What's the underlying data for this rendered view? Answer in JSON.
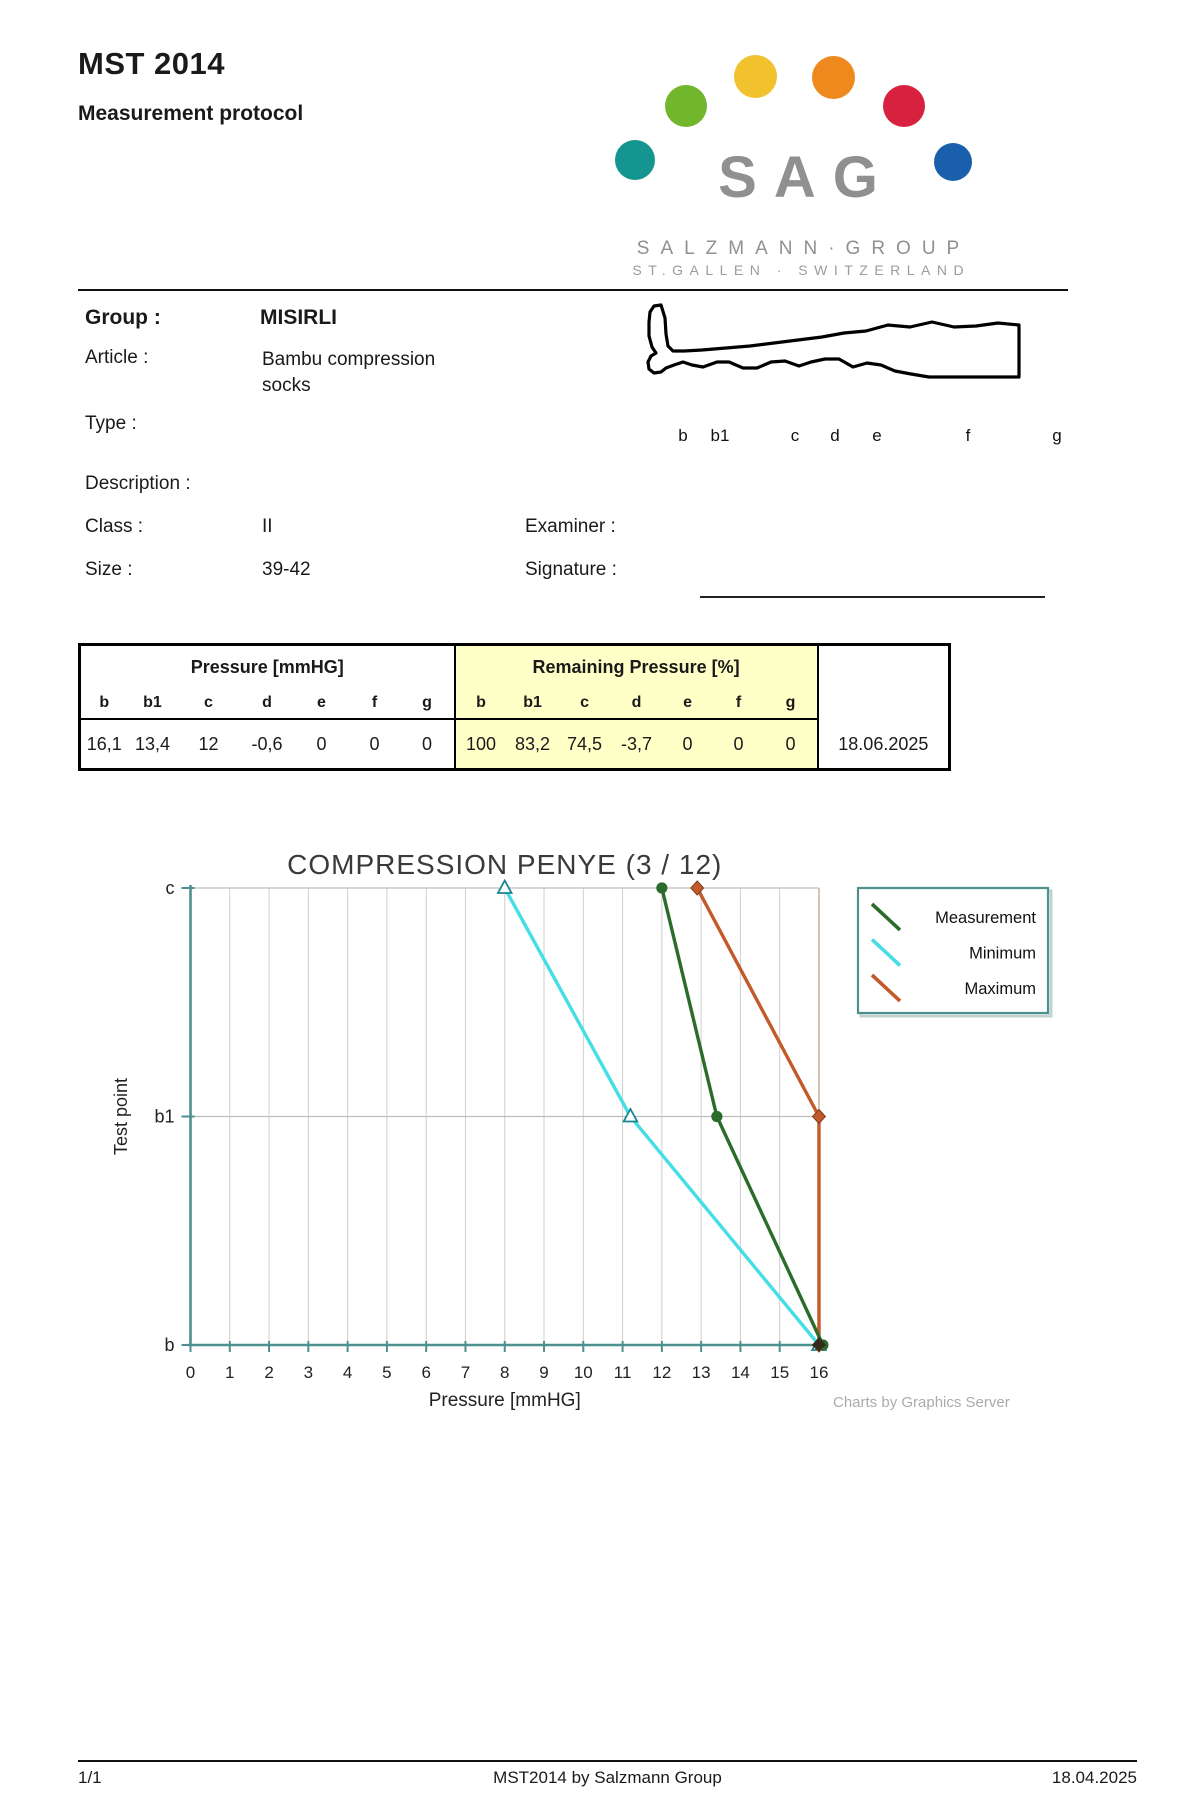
{
  "header": {
    "title": "MST 2014",
    "subtitle": "Measurement protocol"
  },
  "logo": {
    "acronym": "SAG",
    "group_line": "SALZMANN·GROUP",
    "location_line": "ST.GALLEN · SWITZERLAND",
    "dot_colors": [
      "#14958F",
      "#71B62C",
      "#F2C12E",
      "#EE8A1D",
      "#D8203F",
      "#1A5FAC"
    ]
  },
  "info": {
    "group": {
      "label": "Group :",
      "value": "MISIRLI"
    },
    "article": {
      "label": "Article :",
      "value": "Bambu compression socks"
    },
    "type": {
      "label": "Type :",
      "value": ""
    },
    "description": {
      "label": "Description :",
      "value": ""
    },
    "class": {
      "label": "Class :",
      "value": "II"
    },
    "size": {
      "label": "Size :",
      "value": "39-42"
    },
    "examiner": {
      "label": "Examiner :",
      "value": ""
    },
    "signature": {
      "label": "Signature :",
      "value": ""
    }
  },
  "sock_diagram": {
    "labels": [
      "b",
      "b1",
      "c",
      "d",
      "e",
      "f",
      "g"
    ]
  },
  "table": {
    "pressure_header": "Pressure [mmHG]",
    "remaining_header": "Remaining Pressure [%]",
    "columns": [
      "b",
      "b1",
      "c",
      "d",
      "e",
      "f",
      "g"
    ],
    "pressure_values": [
      "16,1",
      "13,4",
      "12",
      "-0,6",
      "0",
      "0",
      "0"
    ],
    "remaining_values": [
      "100",
      "83,2",
      "74,5",
      "-3,7",
      "0",
      "0",
      "0"
    ],
    "date": "18.06.2025",
    "highlight_color": "#FFFFC8"
  },
  "chart_data": {
    "type": "line",
    "title": "COMPRESSION PENYE (3 / 12)",
    "xlabel": "Pressure [mmHG]",
    "ylabel": "Test point",
    "xlim": [
      0,
      16
    ],
    "x_ticks": [
      0,
      1,
      2,
      3,
      4,
      5,
      6,
      7,
      8,
      9,
      10,
      11,
      12,
      13,
      14,
      15,
      16
    ],
    "y_categories": [
      "b",
      "b1",
      "c"
    ],
    "grid": true,
    "legend_position": "top-right",
    "series": [
      {
        "name": "Measurement",
        "color": "#2B6C2B",
        "marker": "circle",
        "x": [
          16.1,
          13.4,
          12
        ],
        "y": [
          "b",
          "b1",
          "c"
        ]
      },
      {
        "name": "Minimum",
        "color": "#45DEE6",
        "marker": "triangle-open",
        "x": [
          16,
          11.2,
          8
        ],
        "y": [
          "b",
          "b1",
          "c"
        ]
      },
      {
        "name": "Maximum",
        "color": "#C25A2C",
        "marker": "diamond",
        "x": [
          16,
          16,
          12.9
        ],
        "y": [
          "b",
          "b1",
          "c"
        ]
      }
    ],
    "watermark": "Charts by Graphics Server"
  },
  "footer": {
    "page": "1/1",
    "center": "MST2014 by Salzmann Group",
    "date": "18.04.2025"
  }
}
